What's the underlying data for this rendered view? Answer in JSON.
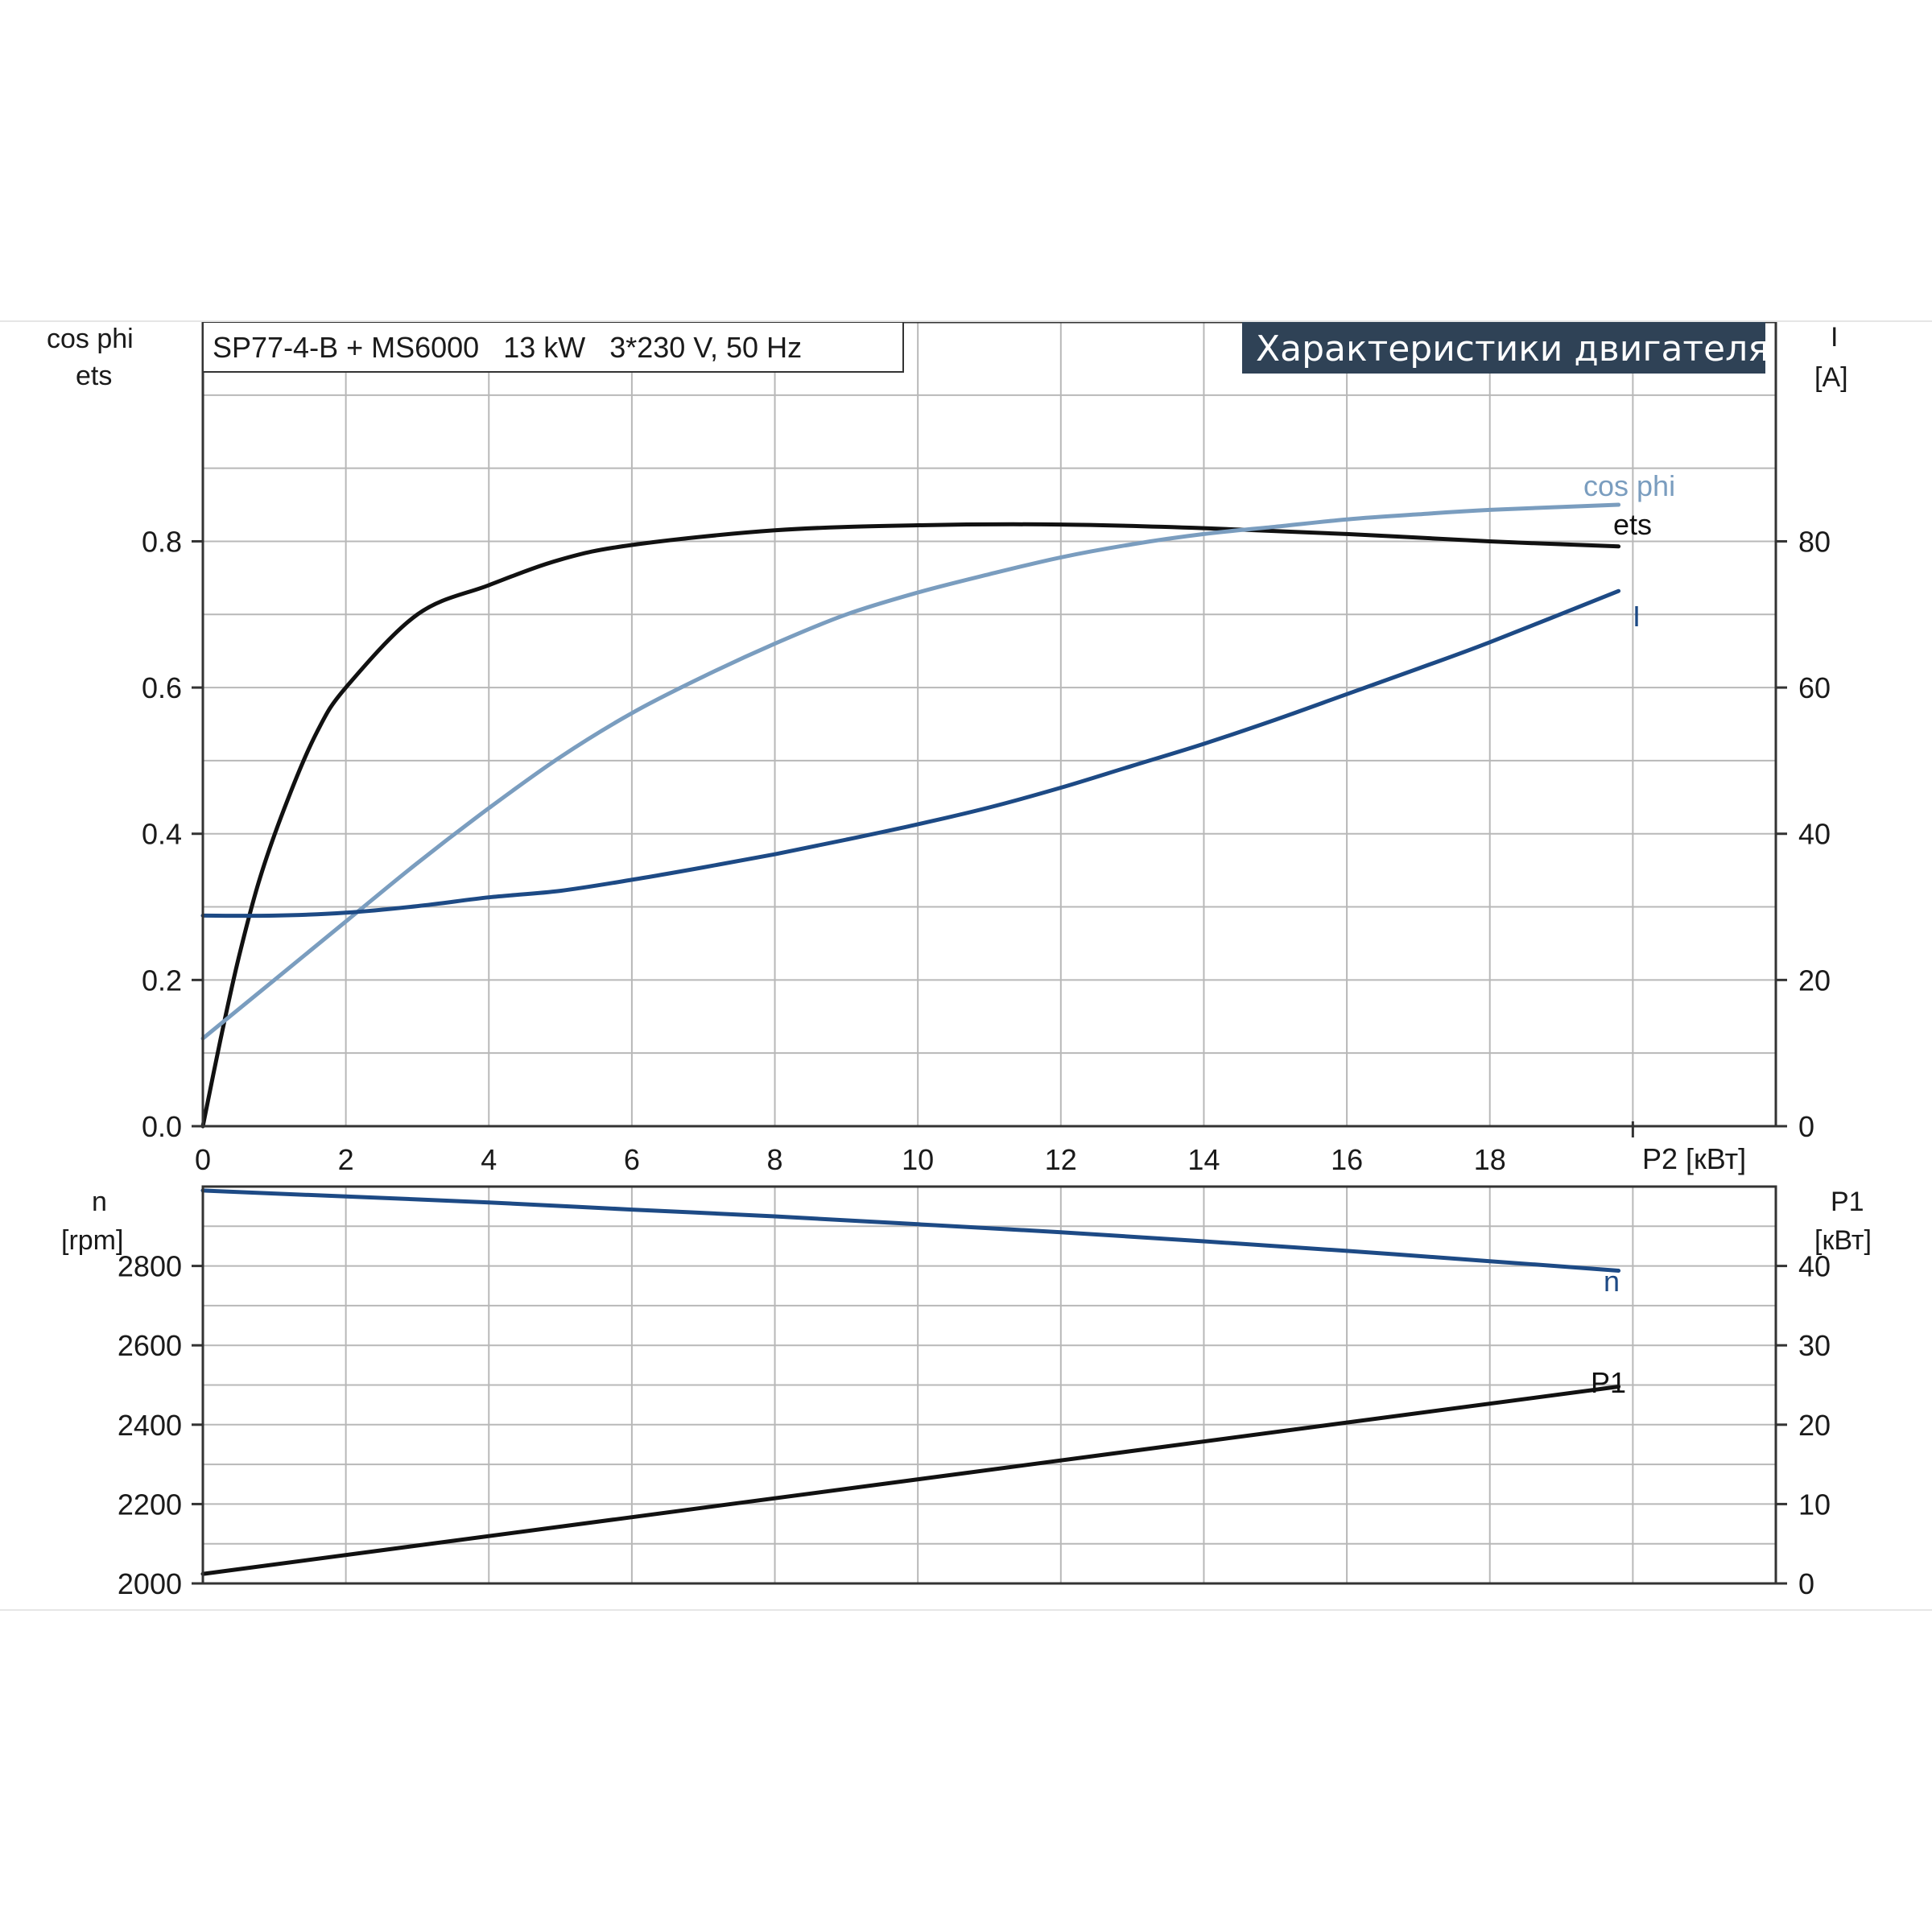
{
  "chart_data": [
    {
      "type": "line",
      "title": "SP77-4-B + MS6000   13 kW   3*230 V, 50 Hz",
      "banner": "Характеристики двигателя",
      "left_axis_label_1": "cos phi",
      "left_axis_label_2": "ets",
      "right_axis_label_1": "I",
      "right_axis_label_2": "[A]",
      "xlabel": "P2 [кВт]",
      "xlim": [
        0,
        22
      ],
      "x_ticks": [
        "0",
        "2",
        "4",
        "6",
        "8",
        "10",
        "12",
        "14",
        "16",
        "18"
      ],
      "ylim_left": [
        0,
        1.1
      ],
      "y_ticks_left": [
        "0.0",
        "0.2",
        "0.4",
        "0.6",
        "0.8"
      ],
      "ylim_right": [
        0,
        110
      ],
      "y_ticks_right": [
        "0",
        "20",
        "40",
        "60",
        "80"
      ],
      "grid": true,
      "series": [
        {
          "name": "ets",
          "axis": "left",
          "color": "#111111",
          "x": [
            0,
            0.25,
            0.5,
            0.8,
            1.2,
            1.6,
            2,
            3,
            4,
            5,
            6,
            8,
            10,
            12,
            14,
            16,
            18,
            19.8
          ],
          "y": [
            0,
            0.12,
            0.23,
            0.34,
            0.45,
            0.54,
            0.6,
            0.7,
            0.74,
            0.775,
            0.795,
            0.815,
            0.822,
            0.823,
            0.818,
            0.81,
            0.8,
            0.793
          ]
        },
        {
          "name": "cos phi",
          "axis": "left",
          "color": "#7a9dbf",
          "x": [
            0,
            1,
            2,
            3,
            4,
            5,
            6,
            7,
            8,
            9,
            10,
            11,
            12,
            13,
            14,
            15,
            16,
            17,
            18,
            19.8
          ],
          "y": [
            0.12,
            0.2,
            0.28,
            0.36,
            0.435,
            0.505,
            0.565,
            0.615,
            0.66,
            0.7,
            0.73,
            0.755,
            0.778,
            0.796,
            0.81,
            0.82,
            0.83,
            0.837,
            0.843,
            0.85
          ]
        },
        {
          "name": "I",
          "axis": "right",
          "color": "#1d4a85",
          "x": [
            0,
            1,
            2,
            3,
            4,
            5,
            6,
            7,
            8,
            9,
            10,
            11,
            12,
            13,
            14,
            15,
            16,
            17,
            18,
            19.8
          ],
          "y": [
            28.8,
            28.8,
            29.2,
            30.1,
            31.3,
            32.2,
            33.7,
            35.4,
            37.2,
            39.2,
            41.3,
            43.6,
            46.3,
            49.3,
            52.3,
            55.6,
            59.1,
            62.6,
            66.2,
            73.2
          ]
        }
      ]
    },
    {
      "type": "line",
      "left_axis_label_1": "n",
      "left_axis_label_2": "[rpm]",
      "right_axis_label_1": "P1",
      "right_axis_label_2": "[кВт]",
      "xlim": [
        0,
        22
      ],
      "ylim_left": [
        2000,
        3000
      ],
      "y_ticks_left": [
        "2000",
        "2200",
        "2400",
        "2600",
        "2800"
      ],
      "ylim_right": [
        0,
        50
      ],
      "y_ticks_right": [
        "0",
        "10",
        "20",
        "30",
        "40"
      ],
      "grid": true,
      "series": [
        {
          "name": "n",
          "axis": "left",
          "color": "#1d4a85",
          "x": [
            0,
            2,
            4,
            6,
            8,
            10,
            12,
            14,
            16,
            18,
            19.8
          ],
          "y": [
            2990,
            2975,
            2960,
            2942,
            2925,
            2905,
            2885,
            2862,
            2838,
            2812,
            2788
          ]
        },
        {
          "name": "P1",
          "axis": "right",
          "color": "#111111",
          "x": [
            0,
            19.8
          ],
          "y": [
            1.2,
            24.8
          ]
        }
      ]
    }
  ]
}
